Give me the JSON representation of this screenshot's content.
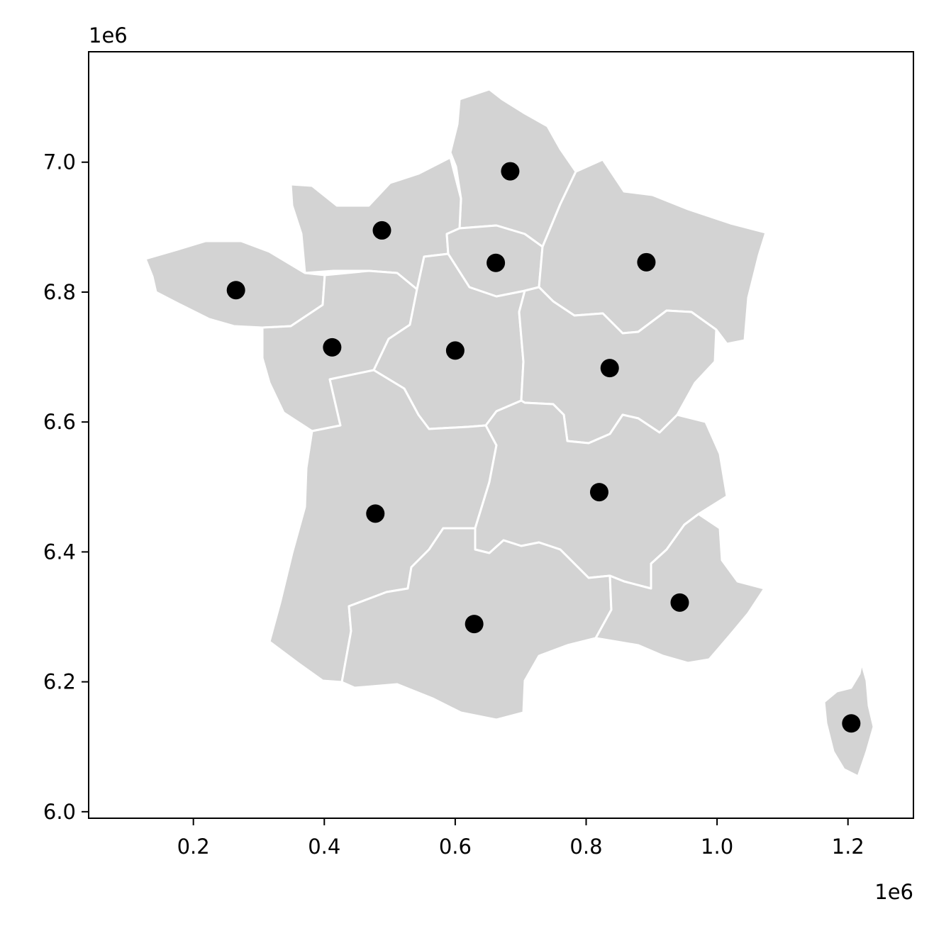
{
  "chart_data": {
    "type": "scatter",
    "title": "",
    "xlabel": "",
    "ylabel": "",
    "x_offset_label": "1e6",
    "y_offset_label": "1e6",
    "xlim": [
      0.04,
      1.3
    ],
    "ylim": [
      5.99,
      7.17
    ],
    "xticks": [
      0.2,
      0.4,
      0.6,
      0.8,
      1.0,
      1.2
    ],
    "xtick_labels": [
      "0.2",
      "0.4",
      "0.6",
      "0.8",
      "1.0",
      "1.2"
    ],
    "yticks": [
      6.0,
      6.2,
      6.4,
      6.6,
      6.8,
      7.0
    ],
    "ytick_labels": [
      "6.0",
      "6.2",
      "6.4",
      "6.6",
      "6.8",
      "7.0"
    ],
    "grid": false,
    "region_fill_color": "#d3d3d3",
    "region_border_color": "#ffffff",
    "point_color": "#000000",
    "points": [
      {
        "x": 0.265,
        "y": 6.803
      },
      {
        "x": 0.412,
        "y": 6.715
      },
      {
        "x": 0.488,
        "y": 6.895
      },
      {
        "x": 0.6,
        "y": 6.71
      },
      {
        "x": 0.662,
        "y": 6.845
      },
      {
        "x": 0.684,
        "y": 6.986
      },
      {
        "x": 0.892,
        "y": 6.846
      },
      {
        "x": 0.836,
        "y": 6.683
      },
      {
        "x": 0.82,
        "y": 6.492
      },
      {
        "x": 0.478,
        "y": 6.459
      },
      {
        "x": 0.629,
        "y": 6.289
      },
      {
        "x": 0.943,
        "y": 6.322
      },
      {
        "x": 1.205,
        "y": 6.136
      }
    ]
  }
}
